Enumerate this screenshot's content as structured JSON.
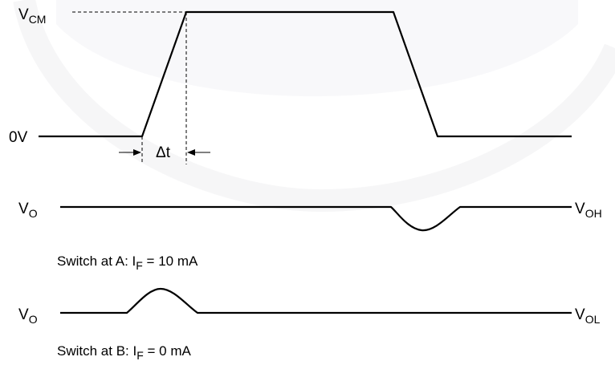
{
  "colors": {
    "background": "#ffffff",
    "line": "#000000",
    "watermark": "#f2f2f5"
  },
  "labels": {
    "vcm": {
      "main": "V",
      "sub": "CM"
    },
    "zero_volt": "0V",
    "delta_t": "Δt",
    "vo_top": {
      "main": "V",
      "sub": "O"
    },
    "voh": {
      "main": "V",
      "sub": "OH"
    },
    "vo_bottom": {
      "main": "V",
      "sub": "O"
    },
    "vol": {
      "main": "V",
      "sub": "OL"
    }
  },
  "captions": {
    "switch_a": {
      "prefix": "Switch at A: I",
      "sub": "F",
      "suffix": " = 10 mA"
    },
    "switch_b": {
      "prefix": "Switch at B: I",
      "sub": "F",
      "suffix": " = 0 mA"
    }
  }
}
